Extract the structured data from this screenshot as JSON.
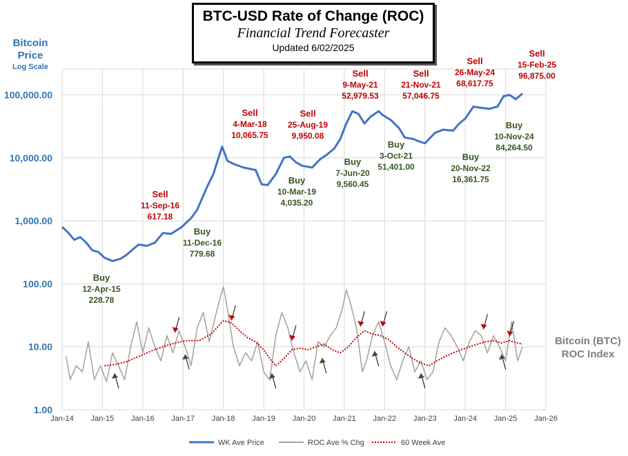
{
  "header": {
    "title": "BTC-USD  Rate of Change (ROC)",
    "subtitle": "Financial Trend Forecaster",
    "updated": "Updated 6/02/2025"
  },
  "y_axis_title": {
    "line1": "Bitcoin",
    "line2": "Price",
    "line3": "Log Scale"
  },
  "right_label": {
    "line1": "Bitcoin (BTC)",
    "line2": "ROC Index"
  },
  "colors": {
    "price": "#4472C4",
    "roc": "#A5A5A5",
    "ma": "#C00000",
    "sell_text": "#C00000",
    "buy_text": "#375623",
    "arrow_sell": "#C00000",
    "arrow_buy": "#375623"
  },
  "chart_data": {
    "type": "line",
    "y_scale": "log",
    "ylim": [
      1,
      200000
    ],
    "y_ticks": [
      1,
      10,
      100,
      1000,
      10000,
      100000
    ],
    "y_tick_labels": [
      "1.00",
      "10.00",
      "100.00",
      "1,000.00",
      "10,000.00",
      "100,000.00"
    ],
    "x_ticks": [
      "Jan-14",
      "Jan-15",
      "Jan-16",
      "Jan-17",
      "Jan-18",
      "Jan-19",
      "Jan-20",
      "Jan-21",
      "Jan-22",
      "Jan-23",
      "Jan-24",
      "Jan-25",
      "Jan-26"
    ],
    "x_range_years": [
      2014,
      2026
    ],
    "series": [
      {
        "name": "WK Ave Price",
        "x": [
          2014.0,
          2014.15,
          2014.3,
          2014.45,
          2014.6,
          2014.75,
          2014.9,
          2015.05,
          2015.25,
          2015.45,
          2015.6,
          2015.75,
          2015.9,
          2016.1,
          2016.3,
          2016.5,
          2016.7,
          2016.95,
          2017.2,
          2017.35,
          2017.5,
          2017.6,
          2017.75,
          2017.9,
          2017.97,
          2018.1,
          2018.25,
          2018.5,
          2018.8,
          2018.95,
          2019.1,
          2019.3,
          2019.5,
          2019.65,
          2019.8,
          2019.95,
          2020.2,
          2020.4,
          2020.55,
          2020.75,
          2020.9,
          2021.05,
          2021.2,
          2021.35,
          2021.5,
          2021.65,
          2021.85,
          2021.95,
          2022.15,
          2022.35,
          2022.5,
          2022.7,
          2022.88,
          2023.0,
          2023.25,
          2023.45,
          2023.7,
          2023.85,
          2024.0,
          2024.2,
          2024.4,
          2024.6,
          2024.8,
          2024.95,
          2025.1,
          2025.25,
          2025.42
        ],
        "y": [
          800,
          650,
          500,
          550,
          450,
          340,
          320,
          260,
          230,
          250,
          290,
          350,
          420,
          400,
          450,
          640,
          620,
          780,
          1100,
          1500,
          2500,
          3500,
          5500,
          11000,
          15000,
          9000,
          8000,
          7000,
          6400,
          3800,
          3700,
          5500,
          10000,
          10500,
          8500,
          7500,
          7000,
          9500,
          11000,
          14000,
          20000,
          35000,
          55000,
          50000,
          35000,
          45000,
          55000,
          48000,
          40000,
          30000,
          21000,
          20000,
          18000,
          17000,
          25000,
          28000,
          27000,
          35000,
          42000,
          65000,
          62000,
          60000,
          65000,
          95000,
          100000,
          85000,
          105000
        ]
      },
      {
        "name": "ROC Ave % Chg",
        "x": [
          2014.1,
          2014.2,
          2014.35,
          2014.5,
          2014.65,
          2014.8,
          2014.95,
          2015.1,
          2015.25,
          2015.4,
          2015.55,
          2015.7,
          2015.85,
          2016.0,
          2016.15,
          2016.3,
          2016.45,
          2016.6,
          2016.75,
          2016.9,
          2017.05,
          2017.2,
          2017.35,
          2017.5,
          2017.65,
          2017.8,
          2017.92,
          2018.0,
          2018.1,
          2018.25,
          2018.4,
          2018.55,
          2018.7,
          2018.85,
          2019.0,
          2019.15,
          2019.3,
          2019.45,
          2019.6,
          2019.75,
          2019.9,
          2020.05,
          2020.2,
          2020.35,
          2020.5,
          2020.65,
          2020.8,
          2020.95,
          2021.05,
          2021.15,
          2021.3,
          2021.45,
          2021.55,
          2021.7,
          2021.85,
          2022.0,
          2022.15,
          2022.3,
          2022.45,
          2022.6,
          2022.75,
          2022.9,
          2023.05,
          2023.2,
          2023.35,
          2023.5,
          2023.65,
          2023.8,
          2023.95,
          2024.1,
          2024.25,
          2024.4,
          2024.55,
          2024.7,
          2024.85,
          2025.0,
          2025.15,
          2025.3,
          2025.42
        ],
        "y": [
          7,
          3,
          5,
          4,
          12,
          3,
          5,
          2.8,
          8,
          5,
          3,
          10,
          25,
          8,
          20,
          10,
          6,
          15,
          8,
          18,
          10,
          5,
          20,
          35,
          12,
          30,
          60,
          90,
          40,
          10,
          5,
          8,
          6,
          12,
          4,
          3,
          15,
          35,
          20,
          8,
          4,
          6,
          3,
          12,
          10,
          15,
          20,
          40,
          80,
          50,
          20,
          4,
          6,
          15,
          25,
          12,
          5,
          3,
          6,
          10,
          4,
          6,
          3,
          4,
          12,
          20,
          15,
          10,
          6,
          12,
          18,
          15,
          8,
          15,
          10,
          6,
          25,
          6,
          10
        ]
      },
      {
        "name": "60 Week Ave",
        "x": [
          2015.05,
          2015.3,
          2015.6,
          2015.9,
          2016.2,
          2016.5,
          2016.8,
          2017.1,
          2017.4,
          2017.7,
          2018.0,
          2018.2,
          2018.4,
          2018.6,
          2018.8,
          2019.0,
          2019.15,
          2019.3,
          2019.5,
          2019.7,
          2019.9,
          2020.1,
          2020.3,
          2020.5,
          2020.7,
          2020.9,
          2021.1,
          2021.3,
          2021.5,
          2021.7,
          2021.9,
          2022.1,
          2022.3,
          2022.5,
          2022.7,
          2022.9,
          2023.1,
          2023.3,
          2023.5,
          2023.7,
          2023.9,
          2024.1,
          2024.3,
          2024.5,
          2024.7,
          2024.9,
          2025.1,
          2025.3,
          2025.42
        ],
        "y": [
          5,
          5.2,
          5.8,
          7,
          8.5,
          10,
          11.5,
          12.5,
          12.5,
          16,
          26,
          24,
          18,
          14,
          12,
          9,
          6.5,
          5,
          6.5,
          9,
          9.5,
          9,
          10,
          11,
          9,
          8,
          10,
          14,
          18,
          16,
          15,
          13,
          10,
          8,
          6.5,
          5.5,
          5,
          6,
          7,
          8,
          9,
          10,
          11,
          12,
          12.5,
          11.5,
          12.5,
          11.5,
          11
        ]
      }
    ],
    "legend": [
      "WK Ave Price",
      "ROC Ave % Chg",
      "60 Week Ave"
    ],
    "legend_position": "bottom",
    "annotations": [
      {
        "type": "Sell",
        "date": "11-Sep-16",
        "value": "617.18",
        "x": 2016.7,
        "y": 617
      },
      {
        "type": "Buy",
        "date": "12-Apr-15",
        "value": "228.78",
        "x": 2015.28,
        "y": 229
      },
      {
        "type": "Buy",
        "date": "11-Dec-16",
        "value": "779.68",
        "x": 2016.95,
        "y": 780
      },
      {
        "type": "Sell",
        "date": "4-Mar-18",
        "value": "10,065.75",
        "x": 2018.17,
        "y": 10066
      },
      {
        "type": "Sell",
        "date": "25-Aug-19",
        "value": "9,950.08",
        "x": 2019.65,
        "y": 9950
      },
      {
        "type": "Buy",
        "date": "10-Mar-19",
        "value": "4,035.20",
        "x": 2019.19,
        "y": 4035
      },
      {
        "type": "Buy",
        "date": "7-Jun-20",
        "value": "9,560.45",
        "x": 2020.43,
        "y": 9560
      },
      {
        "type": "Sell",
        "date": "9-May-21",
        "value": "52,979.53",
        "x": 2021.35,
        "y": 52980
      },
      {
        "type": "Sell",
        "date": "21-Nov-21",
        "value": "57,046.75",
        "x": 2021.89,
        "y": 57047
      },
      {
        "type": "Buy",
        "date": "3-Oct-21",
        "value": "51,401.00",
        "x": 2021.75,
        "y": 51401
      },
      {
        "type": "Buy",
        "date": "20-Nov-22",
        "value": "16,361.75",
        "x": 2022.89,
        "y": 16362
      },
      {
        "type": "Sell",
        "date": "26-May-24",
        "value": "68,617.75",
        "x": 2024.4,
        "y": 68618
      },
      {
        "type": "Buy",
        "date": "10-Nov-24",
        "value": "84,264.50",
        "x": 2024.86,
        "y": 84265
      },
      {
        "type": "Sell",
        "date": "15-Feb-25",
        "value": "96,875.00",
        "x": 2025.12,
        "y": 96875
      }
    ],
    "roc_signal_arrows": [
      {
        "type": "Buy",
        "x": 2015.3,
        "y": 4
      },
      {
        "type": "Sell",
        "x": 2016.8,
        "y": 16
      },
      {
        "type": "Buy",
        "x": 2017.05,
        "y": 8
      },
      {
        "type": "Sell",
        "x": 2018.2,
        "y": 25
      },
      {
        "type": "Buy",
        "x": 2019.2,
        "y": 4
      },
      {
        "type": "Sell",
        "x": 2019.7,
        "y": 12
      },
      {
        "type": "Buy",
        "x": 2020.45,
        "y": 7
      },
      {
        "type": "Sell",
        "x": 2021.4,
        "y": 20
      },
      {
        "type": "Buy",
        "x": 2021.75,
        "y": 9
      },
      {
        "type": "Sell",
        "x": 2021.95,
        "y": 20
      },
      {
        "type": "Buy",
        "x": 2022.9,
        "y": 4
      },
      {
        "type": "Sell",
        "x": 2024.45,
        "y": 18
      },
      {
        "type": "Buy",
        "x": 2024.9,
        "y": 8
      },
      {
        "type": "Sell",
        "x": 2025.1,
        "y": 14
      }
    ]
  }
}
